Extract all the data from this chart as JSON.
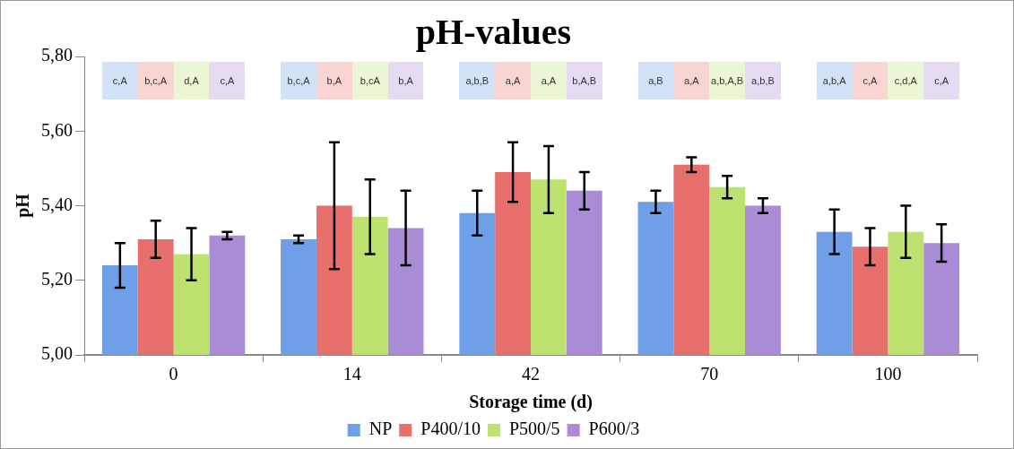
{
  "chart_data": {
    "type": "bar",
    "title": "pH-values",
    "xlabel": "Storage time (d)",
    "ylabel": "pH",
    "categories": [
      "0",
      "14",
      "42",
      "70",
      "100"
    ],
    "ylim": [
      5.0,
      5.8
    ],
    "yticks": [
      {
        "value": 5.0,
        "label": "5,00"
      },
      {
        "value": 5.2,
        "label": "5,20"
      },
      {
        "value": 5.4,
        "label": "5,40"
      },
      {
        "value": 5.6,
        "label": "5,60"
      },
      {
        "value": 5.8,
        "label": "5,80"
      }
    ],
    "grid": false,
    "legend": "bottom",
    "series": [
      {
        "name": "NP",
        "color": "#6f9fe6",
        "values": [
          5.24,
          5.31,
          5.38,
          5.41,
          5.33
        ],
        "errors": [
          0.06,
          0.01,
          0.06,
          0.03,
          0.06
        ]
      },
      {
        "name": "P400/10",
        "color": "#e8706c",
        "values": [
          5.31,
          5.4,
          5.49,
          5.51,
          5.29
        ],
        "errors": [
          0.05,
          0.17,
          0.08,
          0.02,
          0.05
        ]
      },
      {
        "name": "P500/5",
        "color": "#bde26f",
        "values": [
          5.27,
          5.37,
          5.47,
          5.45,
          5.33
        ],
        "errors": [
          0.07,
          0.1,
          0.09,
          0.03,
          0.07
        ]
      },
      {
        "name": "P600/3",
        "color": "#a98bd6",
        "values": [
          5.32,
          5.34,
          5.44,
          5.4,
          5.3
        ],
        "errors": [
          0.01,
          0.1,
          0.05,
          0.02,
          0.05
        ]
      }
    ],
    "annotations": [
      "c,A",
      "b,c,A",
      "d,A",
      "c,A",
      "b,c,A",
      "b,A",
      "b,cA",
      "b,A",
      "a,b,B",
      "a,A",
      "a,A",
      "b,A,B",
      "a,B",
      "a,A",
      "a,b,A,B",
      "a,b,B",
      "a,b,A",
      "c,A",
      "c,d,A",
      "c,A"
    ]
  }
}
